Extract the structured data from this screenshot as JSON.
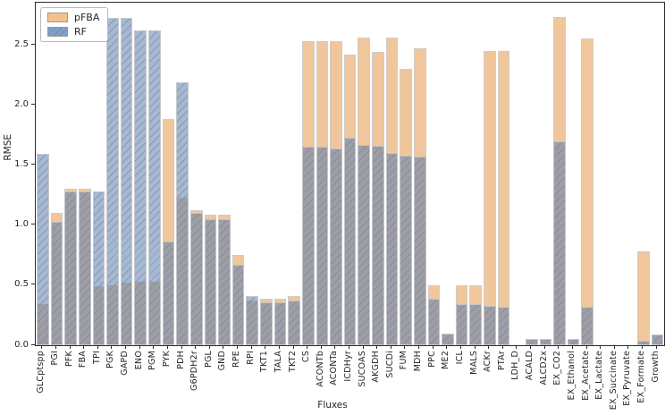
{
  "chart_data": {
    "type": "bar",
    "title": "",
    "xlabel": "Fluxes",
    "ylabel": "RMSE",
    "ylim": [
      0,
      2.85
    ],
    "yticks": [
      0.0,
      0.5,
      1.0,
      1.5,
      2.0,
      2.5
    ],
    "grid": false,
    "legend_position": "upper-left",
    "bars_overlap": true,
    "categories": [
      "GLCptspp",
      "PGI",
      "PFK",
      "FBA",
      "TPI",
      "PGK",
      "GAPD",
      "ENO",
      "PGM",
      "PYK",
      "PDH",
      "G6PDH2r",
      "PGL",
      "GND",
      "RPE",
      "RPI",
      "TKT1",
      "TALA",
      "TKT2",
      "CS",
      "ACONTb",
      "ACONTa",
      "ICDHyr",
      "SUCOAS",
      "AKGDH",
      "SUCDi",
      "FUM",
      "MDH",
      "PPC",
      "ME2",
      "ICL",
      "MALS",
      "ACKr",
      "PTAr",
      "LDH_D",
      "ACALD",
      "ALCD2x",
      "EX_CO2",
      "EX_Ethanol",
      "EX_Acetate",
      "EX_Lactate",
      "EX_Succinate",
      "EX_Pyruvate",
      "EX_Formate",
      "Growth"
    ],
    "series": [
      {
        "name": "pFBA",
        "color": "#e3974b",
        "alpha": 0.55,
        "hatch": "none",
        "legend_swatch_color": "#f4c18c",
        "values": [
          0.34,
          1.1,
          1.3,
          1.3,
          0.49,
          0.5,
          0.52,
          0.53,
          0.53,
          1.88,
          1.23,
          1.12,
          1.09,
          1.09,
          0.75,
          0.37,
          0.39,
          0.39,
          0.41,
          2.53,
          2.53,
          2.53,
          2.42,
          2.56,
          2.44,
          2.56,
          2.3,
          2.47,
          0.5,
          0.09,
          0.5,
          0.5,
          2.45,
          2.45,
          0.0,
          0.05,
          0.05,
          2.73,
          0.05,
          2.55,
          0.0,
          0.0,
          0.0,
          0.78,
          0.08
        ]
      },
      {
        "name": "RF",
        "color": "#5880b4",
        "alpha": 0.55,
        "hatch": "///",
        "hatch_color": "#8a7f76",
        "legend_swatch_color": "#7aa1cf",
        "values": [
          1.59,
          1.03,
          1.28,
          1.28,
          1.28,
          2.72,
          2.72,
          2.62,
          2.62,
          0.86,
          2.19,
          1.1,
          1.05,
          1.05,
          0.67,
          0.41,
          0.36,
          0.36,
          0.37,
          1.65,
          1.65,
          1.64,
          1.73,
          1.67,
          1.66,
          1.6,
          1.58,
          1.57,
          0.39,
          0.1,
          0.34,
          0.34,
          0.33,
          0.32,
          0.0,
          0.05,
          0.05,
          1.7,
          0.05,
          0.32,
          0.0,
          0.0,
          0.0,
          0.04,
          0.09
        ]
      }
    ]
  }
}
